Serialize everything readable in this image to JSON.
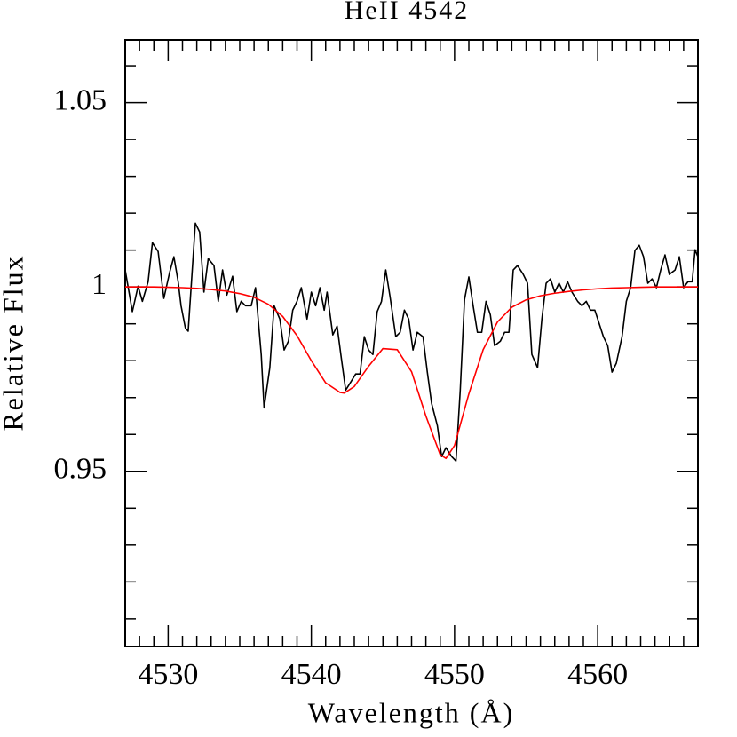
{
  "chart_data": {
    "type": "line",
    "title": "HeII 4542",
    "x_label": "Wavelength (Å)",
    "y_label": "Relative Flux",
    "xlim": [
      4527,
      4567
    ],
    "ylim": [
      0.9025,
      1.067
    ],
    "xticks": [
      4530,
      4540,
      4550,
      4560
    ],
    "yticks": [
      0.95,
      1,
      1.05
    ],
    "x_minor_ticks": [
      4528,
      4529,
      4531,
      4532,
      4533,
      4534,
      4535,
      4536,
      4537,
      4538,
      4539,
      4541,
      4542,
      4543,
      4544,
      4545,
      4546,
      4547,
      4548,
      4549,
      4551,
      4552,
      4553,
      4554,
      4555,
      4556,
      4557,
      4558,
      4559,
      4561,
      4562,
      4563,
      4564,
      4565,
      4566
    ],
    "y_minor_ticks": [
      0.91,
      0.92,
      0.93,
      0.94,
      0.96,
      0.97,
      0.98,
      0.99,
      1.01,
      1.02,
      1.03,
      1.04,
      1.06
    ],
    "series": [
      {
        "color": "#000000",
        "x": [
          4527.0,
          4527.5,
          4527.9,
          4528.2,
          4528.6,
          4528.9,
          4529.3,
          4529.7,
          4530.1,
          4530.4,
          4530.7,
          4530.9,
          4531.2,
          4531.4,
          4531.9,
          4532.2,
          4532.5,
          4532.8,
          4533.2,
          4533.5,
          4533.8,
          4534.1,
          4534.5,
          4534.8,
          4535.1,
          4535.4,
          4535.8,
          4536.1,
          4536.5,
          4536.7,
          4537.1,
          4537.4,
          4537.8,
          4538.1,
          4538.4,
          4538.7,
          4539.0,
          4539.3,
          4539.7,
          4540.0,
          4540.3,
          4540.6,
          4540.9,
          4541.1,
          4541.5,
          4541.8,
          4542.1,
          4542.4,
          4542.8,
          4543.1,
          4543.4,
          4543.7,
          4544.0,
          4544.3,
          4544.6,
          4544.9,
          4545.2,
          4545.5,
          4545.9,
          4546.2,
          4546.5,
          4546.8,
          4547.1,
          4547.4,
          4547.8,
          4548.1,
          4548.4,
          4548.8,
          4549.1,
          4549.4,
          4549.8,
          4550.1,
          4550.4,
          4550.7,
          4551.0,
          4551.3,
          4551.6,
          4551.9,
          4552.2,
          4552.5,
          4552.8,
          4553.2,
          4553.5,
          4553.8,
          4554.1,
          4554.4,
          4554.8,
          4555.1,
          4555.4,
          4555.8,
          4556.1,
          4556.4,
          4556.7,
          4557.0,
          4557.3,
          4557.6,
          4557.9,
          4558.2,
          4558.6,
          4558.9,
          4559.2,
          4559.5,
          4559.8,
          4560.1,
          4560.4,
          4560.7,
          4561.0,
          4561.3,
          4561.7,
          4562.0,
          4562.3,
          4562.6,
          4562.9,
          4563.2,
          4563.5,
          4563.8,
          4564.1,
          4564.4,
          4564.7,
          4565.0,
          4565.4,
          4565.7,
          4566.0,
          4566.3,
          4566.6,
          4566.8,
          4567.0
        ],
        "values": [
          1.0046,
          0.9933,
          1.0002,
          0.9961,
          1.0014,
          1.012,
          1.0096,
          0.9969,
          1.0039,
          1.0082,
          1.0014,
          0.9949,
          0.9889,
          0.988,
          1.0173,
          1.0149,
          0.9986,
          1.0077,
          1.0058,
          0.9961,
          1.0046,
          0.9978,
          1.0029,
          0.9933,
          0.9961,
          0.9949,
          0.9949,
          0.9998,
          0.9817,
          0.9672,
          0.9781,
          0.9949,
          0.9913,
          0.9829,
          0.9853,
          0.9937,
          0.9961,
          0.9998,
          0.9913,
          0.9986,
          0.9949,
          0.9998,
          0.9937,
          0.9986,
          0.987,
          0.9894,
          0.9805,
          0.972,
          0.9745,
          0.9764,
          0.9764,
          0.9865,
          0.9829,
          0.9817,
          0.9933,
          0.9961,
          1.0046,
          0.9973,
          0.9865,
          0.9877,
          0.9937,
          0.9913,
          0.9829,
          0.9877,
          0.9865,
          0.9769,
          0.9684,
          0.9624,
          0.954,
          0.9564,
          0.954,
          0.9528,
          0.972,
          0.9966,
          1.0027,
          0.9949,
          0.9877,
          0.9877,
          0.9961,
          0.9925,
          0.9841,
          0.9853,
          0.9877,
          0.9877,
          1.0046,
          1.0058,
          1.0034,
          1.001,
          0.9817,
          0.9781,
          0.9913,
          1.001,
          1.0022,
          0.9986,
          1.001,
          0.9986,
          1.0014,
          0.9986,
          0.9961,
          0.9949,
          0.9961,
          0.9937,
          0.9937,
          0.9901,
          0.9865,
          0.9841,
          0.9769,
          0.9793,
          0.9865,
          0.9961,
          0.9998,
          1.0099,
          1.0113,
          1.0082,
          1.001,
          1.0022,
          0.9998,
          1.0046,
          1.0087,
          1.0034,
          1.0046,
          1.0082,
          0.9998,
          1.0014,
          1.0014,
          1.0101,
          1.0082
        ]
      },
      {
        "color": "#ff0000",
        "x": [
          4527,
          4528,
          4529,
          4530,
          4531,
          4532,
          4533,
          4534,
          4535,
          4536,
          4537,
          4538,
          4539,
          4540,
          4541,
          4542,
          4542.3,
          4543,
          4544,
          4545,
          4546,
          4547,
          4548,
          4549,
          4549.4,
          4550,
          4551,
          4552,
          4553,
          4554,
          4555,
          4556,
          4557,
          4558,
          4559,
          4560,
          4561,
          4562,
          4563,
          4564,
          4565,
          4566,
          4567
        ],
        "values": [
          1.0,
          1.0,
          1.0,
          0.9999,
          0.9998,
          0.9996,
          0.9993,
          0.9989,
          0.9982,
          0.9972,
          0.9953,
          0.992,
          0.9868,
          0.98,
          0.974,
          0.9714,
          0.9712,
          0.973,
          0.9785,
          0.9833,
          0.983,
          0.977,
          0.965,
          0.9545,
          0.9535,
          0.957,
          0.971,
          0.983,
          0.9905,
          0.9945,
          0.9965,
          0.9976,
          0.9983,
          0.9988,
          0.9992,
          0.9995,
          0.9997,
          0.9998,
          0.9999,
          1.0,
          1.0,
          1.0,
          1.0
        ]
      }
    ]
  }
}
